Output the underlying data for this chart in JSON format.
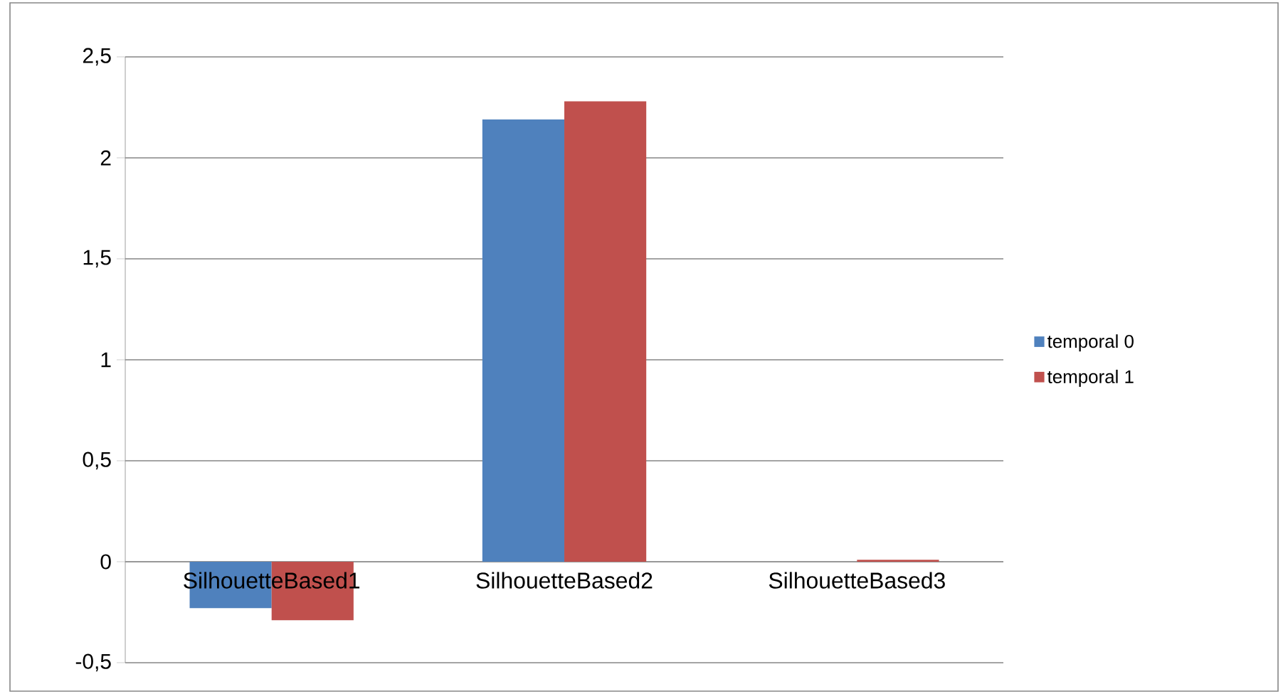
{
  "chart_data": {
    "type": "bar",
    "categories": [
      "SilhouetteBased1",
      "SilhouetteBased2",
      "SilhouetteBased3"
    ],
    "series": [
      {
        "name": "temporal 0",
        "color": "#4f81bd",
        "values": [
          -0.23,
          2.19,
          0
        ]
      },
      {
        "name": "temporal 1",
        "color": "#c0504d",
        "values": [
          -0.29,
          2.28,
          0.01
        ]
      }
    ],
    "ylim": [
      -0.5,
      2.5
    ],
    "yticks": [
      {
        "value": -0.5,
        "label": "-0,5"
      },
      0,
      {
        "value": 0.5,
        "label": "0,5"
      },
      1,
      {
        "value": 1.5,
        "label": "1,5"
      },
      2,
      {
        "value": 2.5,
        "label": "2,5"
      }
    ],
    "grid": "y",
    "legend": "right"
  }
}
